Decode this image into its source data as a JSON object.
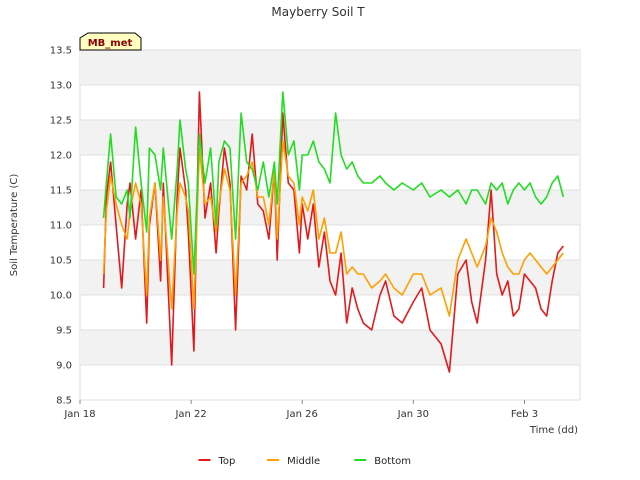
{
  "chart_data": {
    "type": "line",
    "title": "Mayberry Soil T",
    "xlabel": "Time (dd)",
    "ylabel": "Soil Temperature (C)",
    "station_label": "MB_met",
    "xlim": [
      0,
      18
    ],
    "ylim": [
      8.5,
      13.5
    ],
    "x_ticks": [
      {
        "x": 0,
        "label": "Jan 18"
      },
      {
        "x": 4,
        "label": "Jan 22"
      },
      {
        "x": 8,
        "label": "Jan 26"
      },
      {
        "x": 12,
        "label": "Jan 30"
      },
      {
        "x": 16,
        "label": "Feb 3"
      }
    ],
    "y_ticks": [
      8.5,
      9.0,
      9.5,
      10.0,
      10.5,
      11.0,
      11.5,
      12.0,
      12.5,
      13.0,
      13.5
    ],
    "y_tick_labels": [
      "8.5",
      "9.0",
      "9.5",
      "10.0",
      "10.5",
      "11.0",
      "11.5",
      "12.0",
      "12.5",
      "13.0",
      "13.5"
    ],
    "x_units": "days since Jan 18",
    "series": [
      {
        "name": "Top",
        "color": "#e31a1c",
        "x": [
          0.85,
          0.95,
          1.1,
          1.3,
          1.5,
          1.7,
          1.8,
          2.0,
          2.2,
          2.4,
          2.5,
          2.7,
          2.9,
          3.0,
          3.3,
          3.5,
          3.6,
          3.8,
          3.9,
          4.1,
          4.3,
          4.5,
          4.7,
          4.9,
          5.0,
          5.2,
          5.4,
          5.6,
          5.8,
          6.0,
          6.2,
          6.4,
          6.6,
          6.8,
          7.0,
          7.1,
          7.3,
          7.5,
          7.7,
          7.9,
          8.0,
          8.2,
          8.4,
          8.6,
          8.8,
          9.0,
          9.2,
          9.4,
          9.6,
          9.8,
          10.0,
          10.2,
          10.5,
          10.8,
          11.0,
          11.3,
          11.6,
          12.0,
          12.3,
          12.6,
          13.0,
          13.3,
          13.6,
          13.9,
          14.1,
          14.3,
          14.6,
          14.8,
          15.0,
          15.2,
          15.4,
          15.6,
          15.8,
          16.0,
          16.2,
          16.4,
          16.6,
          16.8,
          17.0,
          17.2,
          17.4
        ],
        "values": [
          10.1,
          11.4,
          11.9,
          11.0,
          10.1,
          11.3,
          11.6,
          10.8,
          11.5,
          9.6,
          11.0,
          11.6,
          10.2,
          11.6,
          9.0,
          11.4,
          12.1,
          11.5,
          10.9,
          9.2,
          12.9,
          11.1,
          11.6,
          10.6,
          11.2,
          12.1,
          11.6,
          9.5,
          11.7,
          11.5,
          12.3,
          11.3,
          11.2,
          10.8,
          11.8,
          10.5,
          12.6,
          11.6,
          11.5,
          10.6,
          11.3,
          10.8,
          11.3,
          10.4,
          10.9,
          10.2,
          10.0,
          10.6,
          9.6,
          10.1,
          9.8,
          9.6,
          9.5,
          10.0,
          10.2,
          9.7,
          9.6,
          9.9,
          10.1,
          9.5,
          9.3,
          8.9,
          10.3,
          10.5,
          9.9,
          9.6,
          10.5,
          11.5,
          10.3,
          10.0,
          10.2,
          9.7,
          9.8,
          10.3,
          10.2,
          10.1,
          9.8,
          9.7,
          10.2,
          10.6,
          10.7
        ]
      },
      {
        "name": "Middle",
        "color": "#ff9f00",
        "x": [
          0.85,
          0.95,
          1.1,
          1.3,
          1.5,
          1.7,
          1.8,
          2.0,
          2.2,
          2.4,
          2.5,
          2.7,
          2.9,
          3.0,
          3.3,
          3.5,
          3.6,
          3.8,
          3.9,
          4.1,
          4.3,
          4.5,
          4.7,
          4.9,
          5.0,
          5.2,
          5.4,
          5.6,
          5.8,
          6.0,
          6.2,
          6.4,
          6.6,
          6.8,
          7.0,
          7.1,
          7.3,
          7.5,
          7.7,
          7.9,
          8.0,
          8.2,
          8.4,
          8.6,
          8.8,
          9.0,
          9.2,
          9.4,
          9.6,
          9.8,
          10.0,
          10.2,
          10.5,
          10.8,
          11.0,
          11.3,
          11.6,
          12.0,
          12.3,
          12.6,
          13.0,
          13.3,
          13.6,
          13.9,
          14.1,
          14.3,
          14.6,
          14.8,
          15.0,
          15.2,
          15.4,
          15.6,
          15.8,
          16.0,
          16.2,
          16.4,
          16.6,
          16.8,
          17.0,
          17.2,
          17.4
        ],
        "values": [
          10.3,
          11.2,
          11.7,
          11.3,
          11.0,
          10.8,
          11.2,
          11.6,
          11.3,
          10.0,
          11.1,
          11.6,
          10.5,
          11.4,
          9.8,
          11.2,
          11.6,
          11.4,
          11.2,
          9.8,
          12.1,
          11.3,
          11.4,
          10.9,
          11.3,
          11.8,
          11.5,
          10.0,
          11.6,
          11.7,
          11.9,
          11.4,
          11.4,
          11.0,
          11.8,
          10.8,
          12.2,
          11.7,
          11.6,
          11.0,
          11.4,
          11.2,
          11.5,
          10.8,
          11.1,
          10.6,
          10.6,
          10.9,
          10.3,
          10.4,
          10.3,
          10.3,
          10.1,
          10.2,
          10.3,
          10.1,
          10.0,
          10.3,
          10.3,
          10.0,
          10.1,
          9.7,
          10.5,
          10.8,
          10.6,
          10.4,
          10.7,
          11.1,
          10.9,
          10.6,
          10.4,
          10.3,
          10.3,
          10.5,
          10.6,
          10.5,
          10.4,
          10.3,
          10.4,
          10.5,
          10.6
        ]
      },
      {
        "name": "Bottom",
        "color": "#22dd22",
        "x": [
          0.85,
          0.95,
          1.1,
          1.3,
          1.5,
          1.7,
          1.8,
          2.0,
          2.2,
          2.4,
          2.5,
          2.7,
          2.9,
          3.0,
          3.3,
          3.5,
          3.6,
          3.8,
          3.9,
          4.1,
          4.3,
          4.5,
          4.7,
          4.9,
          5.0,
          5.2,
          5.4,
          5.6,
          5.8,
          6.0,
          6.2,
          6.4,
          6.6,
          6.8,
          7.0,
          7.1,
          7.3,
          7.5,
          7.7,
          7.9,
          8.0,
          8.2,
          8.4,
          8.6,
          8.8,
          9.0,
          9.2,
          9.4,
          9.6,
          9.8,
          10.0,
          10.2,
          10.5,
          10.8,
          11.0,
          11.3,
          11.6,
          12.0,
          12.3,
          12.6,
          13.0,
          13.3,
          13.6,
          13.9,
          14.1,
          14.3,
          14.6,
          14.8,
          15.0,
          15.2,
          15.4,
          15.6,
          15.8,
          16.0,
          16.2,
          16.4,
          16.6,
          16.8,
          17.0,
          17.2,
          17.4
        ],
        "values": [
          11.1,
          11.6,
          12.3,
          11.4,
          11.3,
          11.5,
          11.1,
          12.4,
          11.6,
          10.9,
          12.1,
          12.0,
          11.5,
          12.1,
          10.8,
          11.8,
          12.5,
          11.8,
          11.6,
          10.3,
          12.3,
          11.6,
          12.1,
          11.0,
          11.9,
          12.2,
          12.1,
          10.8,
          12.6,
          11.9,
          11.8,
          11.5,
          11.9,
          11.4,
          11.9,
          11.3,
          12.9,
          12.0,
          12.2,
          11.5,
          12.0,
          12.0,
          12.2,
          11.9,
          11.8,
          11.6,
          12.6,
          12.0,
          11.8,
          11.9,
          11.7,
          11.6,
          11.6,
          11.7,
          11.6,
          11.5,
          11.6,
          11.5,
          11.6,
          11.4,
          11.5,
          11.4,
          11.5,
          11.3,
          11.5,
          11.5,
          11.3,
          11.6,
          11.5,
          11.6,
          11.3,
          11.5,
          11.6,
          11.5,
          11.6,
          11.4,
          11.3,
          11.4,
          11.6,
          11.7,
          11.4
        ]
      }
    ],
    "legend": {
      "position": "bottom-center",
      "items": [
        {
          "label": "Top",
          "color": "#e31a1c"
        },
        {
          "label": "Middle",
          "color": "#ff9f00"
        },
        {
          "label": "Bottom",
          "color": "#22dd22"
        }
      ]
    },
    "grid": true
  }
}
